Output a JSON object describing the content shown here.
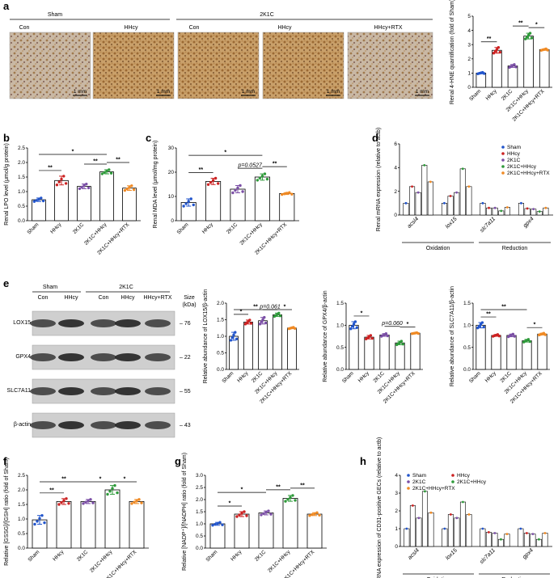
{
  "panel_labels": [
    "a",
    "b",
    "c",
    "d",
    "e",
    "f",
    "g",
    "h"
  ],
  "sig": {
    "double": "**",
    "single": "*"
  },
  "panel_a": {
    "group_sham": "Sham",
    "group_2k1c": "2K1C",
    "image_labels": [
      "Con",
      "HHcy",
      "Con",
      "HHcy",
      "HHcy+RTX"
    ],
    "scale_bar": "1 mm"
  },
  "panel_e_blot": {
    "group_sham": "Sham",
    "group_2k1c": "2K1C",
    "lanes": [
      "Con",
      "HHcy",
      "Con",
      "HHcy",
      "HHcy+RTX"
    ],
    "size_label": "Size",
    "unit_label": "(kDa)",
    "proteins": [
      {
        "name": "LOX15",
        "size": "76"
      },
      {
        "name": "GPX4",
        "size": "22"
      },
      {
        "name": "SLC7A11",
        "size": "55"
      },
      {
        "name": "β-actin",
        "size": "43"
      }
    ]
  },
  "bar_colors": [
    "#2255cc",
    "#cc2222",
    "#7b4fa6",
    "#2e9a3a",
    "#f08a24"
  ],
  "chart_data": [
    {
      "id": "a_chart",
      "type": "bar",
      "ylabel": "Renal 4-HNE quantification (fold of Sham)",
      "ylim": [
        0,
        5
      ],
      "yticks": [
        "0",
        "1",
        "2",
        "3",
        "4",
        "5"
      ],
      "categories": [
        "Sham",
        "HHcy",
        "2K1C",
        "2K1C+HHcy",
        "2K1C+HHcy+RTX"
      ],
      "values": [
        1.0,
        2.6,
        1.5,
        3.6,
        2.65
      ],
      "errors": [
        0.05,
        0.2,
        0.1,
        0.2,
        0.05
      ],
      "annotations": [
        {
          "from": 0,
          "to": 1,
          "text": "**"
        },
        {
          "from": 2,
          "to": 3,
          "text": "**"
        },
        {
          "from": 3,
          "to": 4,
          "text": "*"
        }
      ]
    },
    {
      "id": "b",
      "type": "bar",
      "ylabel": "Renal LPO level (μmol/g protein)",
      "ylim": [
        0,
        2.5
      ],
      "yticks": [
        "0.0",
        "0.5",
        "1.0",
        "1.5",
        "2.0",
        "2.5"
      ],
      "categories": [
        "Sham",
        "HHcy",
        "2K1C",
        "2K1C+HHcy",
        "2K1C+HHcy+RTX"
      ],
      "values": [
        0.72,
        1.38,
        1.18,
        1.68,
        1.12
      ],
      "errors": [
        0.06,
        0.15,
        0.08,
        0.07,
        0.08
      ],
      "annotations": [
        {
          "from": 0,
          "to": 1,
          "text": "**"
        },
        {
          "from": 0,
          "to": 3,
          "text": "*"
        },
        {
          "from": 2,
          "to": 3,
          "text": "**"
        },
        {
          "from": 3,
          "to": 4,
          "text": "**"
        }
      ]
    },
    {
      "id": "c",
      "type": "bar",
      "ylabel": "Renal MDA level (μmol/mg protein)",
      "ylim": [
        0,
        30
      ],
      "yticks": [
        "0",
        "10",
        "20",
        "30"
      ],
      "categories": [
        "Sham",
        "HHcy",
        "2K1C",
        "2K1C+HHcy",
        "2K1C+HHcy+RTX"
      ],
      "values": [
        7.5,
        16.2,
        13,
        18,
        11.2
      ],
      "errors": [
        1.5,
        1.3,
        1.5,
        1.3,
        0.4
      ],
      "annotations": [
        {
          "from": 0,
          "to": 1,
          "text": "**"
        },
        {
          "from": 0,
          "to": 3,
          "text": "*"
        },
        {
          "from": 2,
          "to": 3,
          "text": "p=0.0527"
        },
        {
          "from": 3,
          "to": 4,
          "text": "**"
        }
      ]
    },
    {
      "id": "d",
      "type": "bar",
      "ylabel": "Renal mRNA expression (relative to actb)",
      "ylim": [
        0,
        6
      ],
      "yticks": [
        "0",
        "2",
        "4",
        "6"
      ],
      "categories": [
        "acsl4",
        "lox15",
        "slc7a11",
        "gpx4"
      ],
      "groups": [
        {
          "label": "Oxidation",
          "members": [
            0,
            1
          ]
        },
        {
          "label": "Reduction",
          "members": [
            2,
            3
          ]
        }
      ],
      "series": [
        {
          "name": "Sham",
          "values": [
            1.0,
            1.0,
            1.0,
            1.0
          ]
        },
        {
          "name": "HHcy",
          "values": [
            2.4,
            1.6,
            0.6,
            0.55
          ]
        },
        {
          "name": "2K1C",
          "values": [
            1.9,
            1.9,
            0.6,
            0.5
          ]
        },
        {
          "name": "2K1C+HHcy",
          "values": [
            4.2,
            3.9,
            0.35,
            0.3
          ]
        },
        {
          "name": "2K1C+HHcy+RTX",
          "values": [
            2.8,
            2.4,
            0.65,
            0.6
          ]
        }
      ]
    },
    {
      "id": "e_lox",
      "type": "bar",
      "ylabel": "Relative abundance of LOX15/β-actin",
      "ylim": [
        0,
        2.0
      ],
      "yticks": [
        "0.0",
        "0.5",
        "1.0",
        "1.5",
        "2.0"
      ],
      "categories": [
        "Sham",
        "HHcy",
        "2K1C",
        "2K1C+HHcy",
        "2K1C+HHcy+RTX"
      ],
      "values": [
        1.0,
        1.43,
        1.47,
        1.65,
        1.25
      ],
      "errors": [
        0.12,
        0.06,
        0.1,
        0.05,
        0.02
      ],
      "annotations": [
        {
          "from": 0,
          "to": 1,
          "text": "*"
        },
        {
          "from": 0,
          "to": 3,
          "text": "**"
        },
        {
          "from": 2,
          "to": 3,
          "text": "p=0.061"
        },
        {
          "from": 3,
          "to": 4,
          "text": "*"
        }
      ]
    },
    {
      "id": "e_gpx",
      "type": "bar",
      "ylabel": "Relative abundance of GPX4/β-actin",
      "ylim": [
        0,
        1.5
      ],
      "yticks": [
        "0.0",
        "0.5",
        "1.0",
        "1.5"
      ],
      "categories": [
        "Sham",
        "HHcy",
        "2K1C",
        "2K1C+HHcy",
        "2K1C+HHcy+RTX"
      ],
      "values": [
        1.0,
        0.73,
        0.78,
        0.6,
        0.82
      ],
      "errors": [
        0.08,
        0.04,
        0.03,
        0.04,
        0.01
      ],
      "annotations": [
        {
          "from": 0,
          "to": 1,
          "text": "*"
        },
        {
          "from": 2,
          "to": 3,
          "text": "p=0.060"
        },
        {
          "from": 3,
          "to": 4,
          "text": "*"
        }
      ]
    },
    {
      "id": "e_slc",
      "type": "bar",
      "ylabel": "Relative abundance of SLC7A11/β-actin",
      "ylim": [
        0,
        1.5
      ],
      "yticks": [
        "0.0",
        "0.5",
        "1.0",
        "1.5"
      ],
      "categories": [
        "Sham",
        "HHcy",
        "2K1C",
        "2K1C+HHcy",
        "2K1C+HHcy+RTX"
      ],
      "values": [
        1.0,
        0.77,
        0.77,
        0.65,
        0.8
      ],
      "errors": [
        0.06,
        0.02,
        0.03,
        0.03,
        0.02
      ],
      "annotations": [
        {
          "from": 0,
          "to": 1,
          "text": "**"
        },
        {
          "from": 0,
          "to": 3,
          "text": "**"
        },
        {
          "from": 3,
          "to": 4,
          "text": "*"
        }
      ]
    },
    {
      "id": "f",
      "type": "bar",
      "ylabel": "Relative [GSSG]/[GSH] ratio (fold of Sham)",
      "ylim": [
        0,
        2.5
      ],
      "yticks": [
        "0.0",
        "0.5",
        "1.0",
        "1.5",
        "2.0",
        "2.5"
      ],
      "categories": [
        "Sham",
        "HHcy",
        "2K1C",
        "2K1C+HHcy",
        "2K1C+HHcy+RTX"
      ],
      "values": [
        0.97,
        1.6,
        1.6,
        2.0,
        1.6
      ],
      "errors": [
        0.15,
        0.1,
        0.07,
        0.15,
        0.07
      ],
      "annotations": [
        {
          "from": 0,
          "to": 1,
          "text": "**"
        },
        {
          "from": 0,
          "to": 2,
          "text": "**"
        },
        {
          "from": 2,
          "to": 3,
          "text": "*"
        },
        {
          "from": 3,
          "to": 4,
          "text": "*"
        }
      ]
    },
    {
      "id": "g",
      "type": "bar",
      "ylabel": "Relative [NADP⁺]/[NADPH] ratio (fold of Sham)",
      "ylim": [
        0,
        3.0
      ],
      "yticks": [
        "0.0",
        "0.5",
        "1.0",
        "1.5",
        "2.0",
        "2.5",
        "3.0"
      ],
      "categories": [
        "Sham",
        "HHcy",
        "2K1C",
        "2K1C+HHcy",
        "2K1C+HHcy+RTX"
      ],
      "values": [
        1.0,
        1.4,
        1.45,
        2.05,
        1.4
      ],
      "errors": [
        0.06,
        0.1,
        0.08,
        0.12,
        0.06
      ],
      "annotations": [
        {
          "from": 0,
          "to": 1,
          "text": "*"
        },
        {
          "from": 0,
          "to": 2,
          "text": "*"
        },
        {
          "from": 2,
          "to": 3,
          "text": "**"
        },
        {
          "from": 3,
          "to": 4,
          "text": "**"
        }
      ]
    },
    {
      "id": "h",
      "type": "bar",
      "ylabel": "mRNA expression of CD31-positive GECs (relative to actb)",
      "ylim": [
        0,
        4
      ],
      "yticks": [
        "0",
        "1",
        "2",
        "3",
        "4"
      ],
      "categories": [
        "acsl4",
        "lox15",
        "slc7a11",
        "gpx4"
      ],
      "groups": [
        {
          "label": "Oxidation",
          "members": [
            0,
            1
          ]
        },
        {
          "label": "Reduction",
          "members": [
            2,
            3
          ]
        }
      ],
      "series": [
        {
          "name": "Sham",
          "values": [
            1.0,
            1.0,
            1.0,
            1.0
          ]
        },
        {
          "name": "HHcy",
          "values": [
            2.3,
            1.8,
            0.8,
            0.75
          ]
        },
        {
          "name": "2K1C",
          "values": [
            1.6,
            1.6,
            0.75,
            0.7
          ]
        },
        {
          "name": "2K1C+HHcy",
          "values": [
            3.1,
            2.5,
            0.4,
            0.4
          ]
        },
        {
          "name": "2K1C+HHcy+RTX",
          "values": [
            1.9,
            1.8,
            0.7,
            0.75
          ]
        }
      ]
    }
  ]
}
